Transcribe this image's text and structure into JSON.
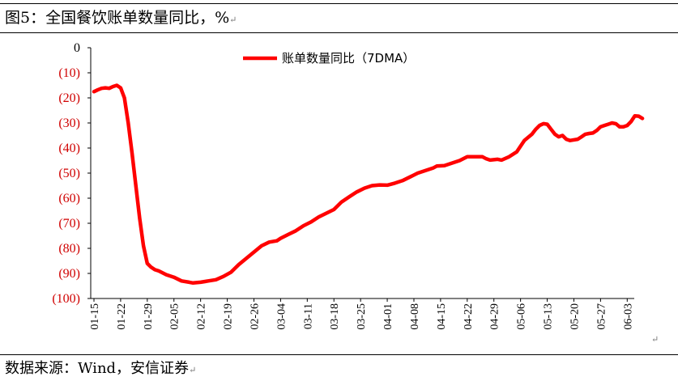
{
  "figure": {
    "title": "图5：全国餐饮账单数量同比，%",
    "source": "数据来源：Wind，安信证券",
    "paragraph_mark": "↵"
  },
  "chart_data": {
    "type": "line",
    "title": "全国餐饮账单数量同比，%",
    "xlabel": "",
    "ylabel": "%",
    "ylim": [
      -100,
      0
    ],
    "ytick_values": [
      0,
      -10,
      -20,
      -30,
      -40,
      -50,
      -60,
      -70,
      -80,
      -90,
      -100
    ],
    "ytick_labels": [
      "0",
      "(10)",
      "(20)",
      "(30)",
      "(40)",
      "(50)",
      "(60)",
      "(70)",
      "(80)",
      "(90)",
      "(100)"
    ],
    "negative_tick_color": "#d00000",
    "xtick_labels": [
      "01-15",
      "01-22",
      "01-29",
      "02-05",
      "02-12",
      "02-19",
      "02-26",
      "03-04",
      "03-11",
      "03-18",
      "03-25",
      "04-01",
      "04-08",
      "04-15",
      "04-22",
      "04-29",
      "05-06",
      "05-13",
      "05-20",
      "05-27",
      "06-03"
    ],
    "x_start_day": 0,
    "x_end_day": 141,
    "legend": {
      "label": "账单数量同比（7DMA）",
      "position": "top-center"
    },
    "grid": false,
    "series": [
      {
        "name": "账单数量同比（7DMA）",
        "color": "#ff0000",
        "points": [
          [
            0,
            -17.5
          ],
          [
            1,
            -16.8
          ],
          [
            2,
            -16.2
          ],
          [
            3,
            -16
          ],
          [
            4,
            -16.2
          ],
          [
            5,
            -15.5
          ],
          [
            6,
            -15
          ],
          [
            7,
            -16
          ],
          [
            8,
            -20
          ],
          [
            9,
            -30
          ],
          [
            10,
            -42
          ],
          [
            11,
            -55
          ],
          [
            12,
            -68
          ],
          [
            13,
            -79
          ],
          [
            14,
            -86
          ],
          [
            15,
            -87.5
          ],
          [
            16,
            -88.5
          ],
          [
            17,
            -89
          ],
          [
            19,
            -90.5
          ],
          [
            21,
            -91.5
          ],
          [
            23,
            -93
          ],
          [
            25,
            -93.5
          ],
          [
            26,
            -93.8
          ],
          [
            28,
            -93.5
          ],
          [
            30,
            -93
          ],
          [
            32,
            -92.5
          ],
          [
            34,
            -91.2
          ],
          [
            36,
            -89.5
          ],
          [
            38,
            -86.5
          ],
          [
            40,
            -84
          ],
          [
            42,
            -81.5
          ],
          [
            44,
            -79
          ],
          [
            46,
            -77.5
          ],
          [
            48,
            -77
          ],
          [
            49,
            -76
          ],
          [
            51,
            -74.5
          ],
          [
            53,
            -73
          ],
          [
            55,
            -71
          ],
          [
            57,
            -69.5
          ],
          [
            59,
            -67.5
          ],
          [
            61,
            -66
          ],
          [
            63,
            -64.5
          ],
          [
            65,
            -61.5
          ],
          [
            67,
            -59.5
          ],
          [
            69,
            -57.5
          ],
          [
            71,
            -56
          ],
          [
            73,
            -55
          ],
          [
            75,
            -54.7
          ],
          [
            77,
            -54.8
          ],
          [
            79,
            -54
          ],
          [
            81,
            -53
          ],
          [
            83,
            -51.5
          ],
          [
            85,
            -50
          ],
          [
            87,
            -49
          ],
          [
            89,
            -48
          ],
          [
            90,
            -47.2
          ],
          [
            92,
            -47
          ],
          [
            94,
            -46
          ],
          [
            96,
            -45
          ],
          [
            98,
            -43.5
          ],
          [
            100,
            -43.5
          ],
          [
            102,
            -43.5
          ],
          [
            103,
            -44.3
          ],
          [
            104,
            -44.8
          ],
          [
            106,
            -44.5
          ],
          [
            107,
            -44.8
          ],
          [
            109,
            -43.5
          ],
          [
            111,
            -41.5
          ],
          [
            113,
            -37
          ],
          [
            115,
            -34.5
          ],
          [
            116,
            -32.5
          ],
          [
            117,
            -31
          ],
          [
            118,
            -30.3
          ],
          [
            119,
            -30.5
          ],
          [
            120,
            -32.5
          ],
          [
            121,
            -34.5
          ],
          [
            122,
            -35.5
          ],
          [
            123,
            -35
          ],
          [
            124,
            -36.5
          ],
          [
            125,
            -37
          ],
          [
            127,
            -36.5
          ],
          [
            128,
            -35.5
          ],
          [
            129,
            -34.5
          ],
          [
            130,
            -34.2
          ],
          [
            131,
            -34
          ],
          [
            132,
            -33
          ],
          [
            133,
            -31.5
          ],
          [
            134,
            -31
          ],
          [
            135,
            -30.5
          ],
          [
            136,
            -30
          ],
          [
            137,
            -30.3
          ],
          [
            138,
            -31.5
          ],
          [
            139,
            -31.5
          ],
          [
            140,
            -31
          ],
          [
            141,
            -29.5
          ],
          [
            142,
            -27.2
          ],
          [
            143,
            -27.3
          ],
          [
            144,
            -28.2
          ]
        ]
      }
    ]
  }
}
